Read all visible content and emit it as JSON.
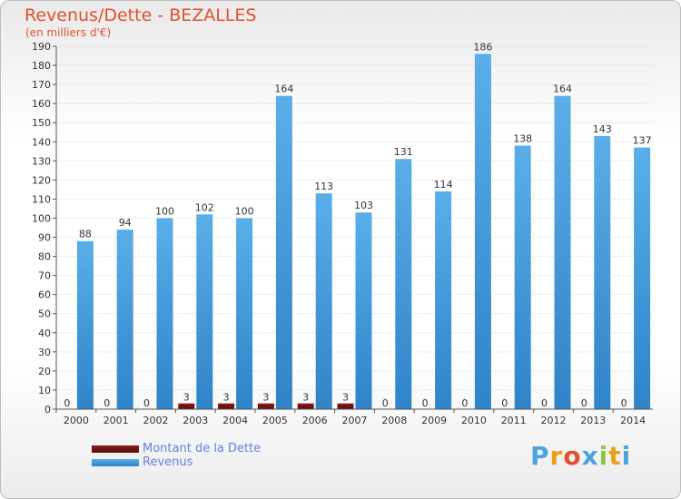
{
  "title": "Revenus/Dette - BEZALLES",
  "subtitle": "(en milliers d'€)",
  "logo": {
    "text": "Proxiti",
    "letter_colors": [
      "#4da3e0",
      "#e8a020",
      "#e0522d",
      "#4da3e0",
      "#8cc63e",
      "#e8a020",
      "#4da3e0"
    ]
  },
  "colors": {
    "dette": "#6b0f0f",
    "revenus": "#3c92d6",
    "axis_text": "#333333",
    "grid": "#d0d0d0"
  },
  "chart_data": {
    "type": "bar",
    "categories": [
      "2000",
      "2001",
      "2002",
      "2003",
      "2004",
      "2005",
      "2006",
      "2007",
      "2008",
      "2009",
      "2010",
      "2011",
      "2012",
      "2013",
      "2014"
    ],
    "series": [
      {
        "name": "Montant de la Dette",
        "values": [
          0,
          0,
          0,
          3,
          3,
          3,
          3,
          3,
          0,
          0,
          0,
          0,
          0,
          0,
          0
        ]
      },
      {
        "name": "Revenus",
        "values": [
          88,
          94,
          100,
          102,
          100,
          164,
          113,
          103,
          131,
          114,
          186,
          138,
          164,
          143,
          137
        ]
      }
    ],
    "ylim": [
      0,
      190
    ],
    "ytick_step": 10,
    "grid": true,
    "legend": "bottom-left"
  }
}
